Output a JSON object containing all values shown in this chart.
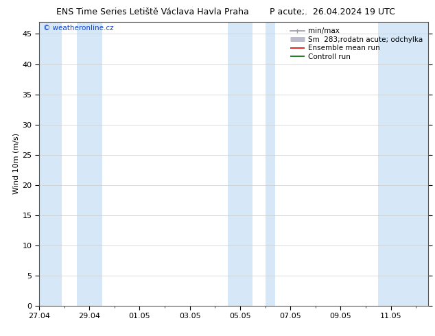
{
  "title_left": "ENS Time Series Letiště Václava Havla Praha",
  "title_right": "P acute;.  26.04.2024 19 UTC",
  "ylabel": "Wind 10m (m/s)",
  "watermark": "© weatheronline.cz",
  "ylim": [
    0,
    47
  ],
  "yticks": [
    0,
    5,
    10,
    15,
    20,
    25,
    30,
    35,
    40,
    45
  ],
  "xtick_labels": [
    "27.04",
    "29.04",
    "01.05",
    "03.05",
    "05.05",
    "07.05",
    "09.05",
    "11.05"
  ],
  "num_days": 16,
  "shaded_day_indices": [
    0,
    2,
    8,
    10,
    14
  ],
  "band_color": "#d6e8f7",
  "bg_color": "#ffffff",
  "legend_entries": [
    {
      "label": "min/max",
      "color": "#9999aa",
      "lw": 1.2
    },
    {
      "label": "Sm  283;rodatn acute; odchylka",
      "color": "#bbbbcc",
      "lw": 5
    },
    {
      "label": "Ensemble mean run",
      "color": "#dd0000",
      "lw": 1.2
    },
    {
      "label": "Controll run",
      "color": "#006600",
      "lw": 1.2
    }
  ],
  "title_fontsize": 9,
  "tick_fontsize": 8,
  "ylabel_fontsize": 8,
  "legend_fontsize": 7.5,
  "watermark_color": "#1144cc",
  "watermark_fontsize": 7.5
}
